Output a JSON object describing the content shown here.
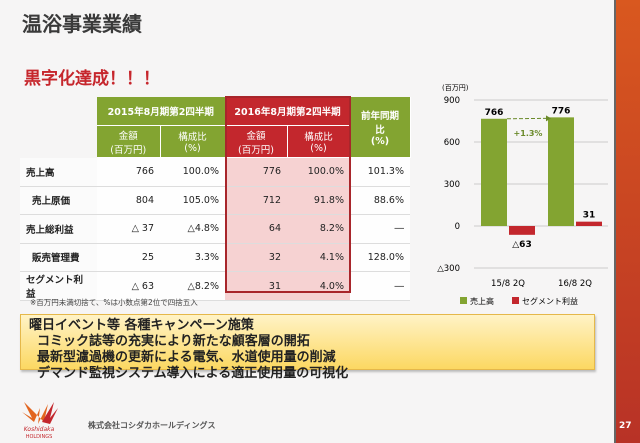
{
  "title": "温浴事業業績",
  "subtitle": "黒字化達成！！！",
  "table": {
    "period1": "2015年8月期第2四半期",
    "period2": "2016年8月期第2四半期",
    "yoy": "前年同期比\n(%)",
    "amount": "金額\n(百万円)",
    "ratio": "構成比\n(%)",
    "rows": [
      {
        "label": "売上高",
        "a1": "766",
        "r1": "100.0%",
        "a2": "776",
        "r2": "100.0%",
        "yoy": "101.3%"
      },
      {
        "label": "売上原価",
        "a1": "804",
        "r1": "105.0%",
        "a2": "712",
        "r2": "91.8%",
        "yoy": "88.6%"
      },
      {
        "label": "売上総利益",
        "a1": "△ 37",
        "r1": "△4.8%",
        "a2": "64",
        "r2": "8.2%",
        "yoy": "―"
      },
      {
        "label": "販売管理費",
        "a1": "25",
        "r1": "3.3%",
        "a2": "32",
        "r2": "4.1%",
        "yoy": "128.0%"
      },
      {
        "label": "セグメント利益",
        "a1": "△ 63",
        "r1": "△8.2%",
        "a2": "31",
        "r2": "4.0%",
        "yoy": "―"
      }
    ],
    "note": "※百万円未満切捨て、%は小数点第2位で四捨五入"
  },
  "chart_data": {
    "type": "bar",
    "unit": "(百万円)",
    "categories": [
      "15/8 2Q",
      "16/8 2Q"
    ],
    "series": [
      {
        "name": "売上高",
        "values": [
          766,
          776
        ],
        "labels": [
          "766",
          "776"
        ],
        "color": "#83a431"
      },
      {
        "name": "セグメント利益",
        "values": [
          -63,
          31
        ],
        "labels": [
          "△63",
          "31"
        ],
        "color": "#c3272d"
      }
    ],
    "ylim": [
      -300,
      900
    ],
    "ticks": [
      900,
      600,
      300,
      0,
      -300
    ],
    "tick_labels": [
      "900",
      "600",
      "300",
      "0",
      "△300"
    ],
    "annotation": "+1.3%"
  },
  "box": {
    "lines": [
      "曜日イベント等 各種キャンペーン施策",
      "コミック誌等の充実により新たな顧客層の開拓",
      "最新型濾過機の更新による電気、水道使用量の削減",
      "デマンド監視システム導入による適正使用量の可視化"
    ]
  },
  "footer": {
    "logo_text": "Koshidaka HOLDINGS",
    "company": "株式会社コシダカホールディングス",
    "page": "27"
  }
}
